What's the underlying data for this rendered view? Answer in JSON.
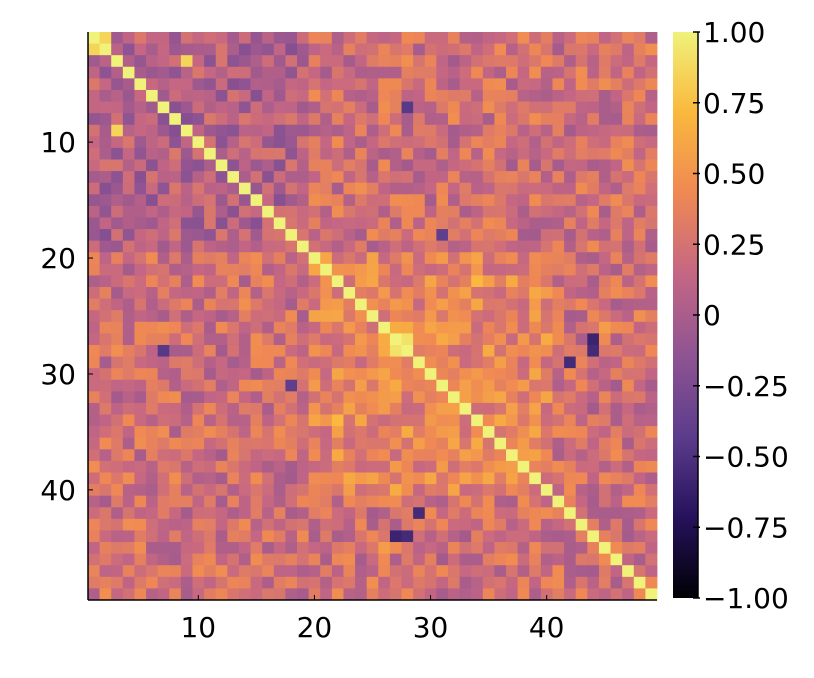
{
  "chart_data": {
    "type": "heatmap",
    "rows": 49,
    "cols": 49,
    "x_ticks": [
      {
        "value": 10,
        "label": "10"
      },
      {
        "value": 20,
        "label": "20"
      },
      {
        "value": 30,
        "label": "30"
      },
      {
        "value": 40,
        "label": "40"
      }
    ],
    "y_ticks": [
      {
        "value": 10,
        "label": "10"
      },
      {
        "value": 20,
        "label": "20"
      },
      {
        "value": 30,
        "label": "30"
      },
      {
        "value": 40,
        "label": "40"
      }
    ],
    "y_direction": "top-to-bottom",
    "colorbar": {
      "range": [
        -1.0,
        1.0
      ],
      "placement": "right",
      "ticks": [
        {
          "value": 1.0,
          "label": "1.00"
        },
        {
          "value": 0.75,
          "label": "0.75"
        },
        {
          "value": 0.5,
          "label": "0.50"
        },
        {
          "value": 0.25,
          "label": "0.25"
        },
        {
          "value": 0.0,
          "label": "0"
        },
        {
          "value": -0.25,
          "label": "−0.25"
        },
        {
          "value": -0.5,
          "label": "−0.50"
        },
        {
          "value": -0.75,
          "label": "−0.75"
        },
        {
          "value": -1.0,
          "label": "−1.00"
        }
      ]
    },
    "colormap": [
      "#000004",
      "#26125c",
      "#5c3c8c",
      "#8f5492",
      "#c46684",
      "#ef8854",
      "#fab83d",
      "#f0f27a"
    ],
    "diagonal_value": 1.0,
    "matrix_structure": "symmetric correlation matrix",
    "notable_cells": [
      {
        "row": 1,
        "col": 2,
        "value": 0.85
      },
      {
        "row": 2,
        "col": 1,
        "value": 0.85
      },
      {
        "row": 3,
        "col": 9,
        "value": 0.85
      },
      {
        "row": 9,
        "col": 3,
        "value": 0.85
      },
      {
        "row": 27,
        "col": 28,
        "value": 0.92
      },
      {
        "row": 28,
        "col": 27,
        "value": 0.92
      },
      {
        "row": 7,
        "col": 28,
        "value": -0.45
      },
      {
        "row": 28,
        "col": 7,
        "value": -0.45
      },
      {
        "row": 29,
        "col": 42,
        "value": -0.55
      },
      {
        "row": 42,
        "col": 29,
        "value": -0.55
      },
      {
        "row": 44,
        "col": 27,
        "value": -0.6
      },
      {
        "row": 27,
        "col": 44,
        "value": -0.6
      },
      {
        "row": 44,
        "col": 28,
        "value": -0.55
      },
      {
        "row": 28,
        "col": 44,
        "value": -0.55
      },
      {
        "row": 18,
        "col": 31,
        "value": -0.4
      },
      {
        "row": 31,
        "col": 18,
        "value": -0.4
      },
      {
        "row": 34,
        "col": 22,
        "value": 0.72
      },
      {
        "row": 22,
        "col": 34,
        "value": 0.72
      },
      {
        "row": 26,
        "col": 45,
        "value": 0.55
      },
      {
        "row": 45,
        "col": 26,
        "value": 0.55
      }
    ],
    "block_structure": {
      "high_correlation_block": {
        "from": 20,
        "to": 40,
        "typical_value": 0.4
      },
      "low_correlation_block": {
        "from": 1,
        "to": 19,
        "typical_value": 0.05
      }
    }
  }
}
